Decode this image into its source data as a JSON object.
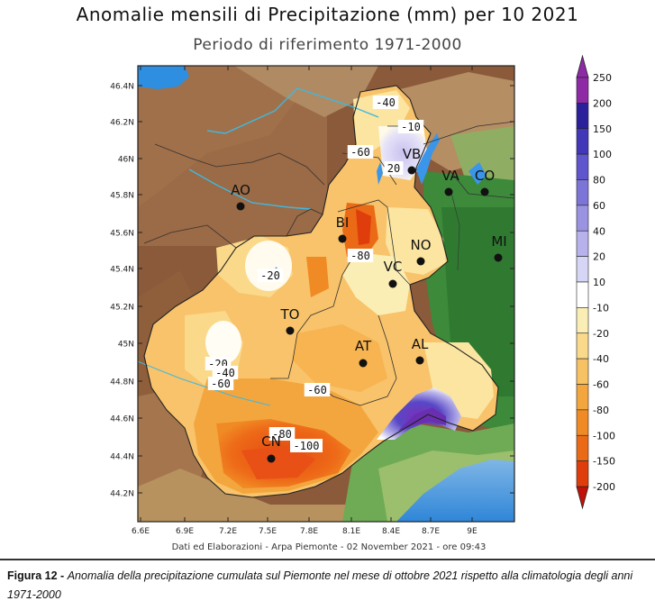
{
  "title": "Anomalie mensili di Precipitazione (mm) per 10 2021",
  "subtitle": "Periodo di riferimento 1971-2000",
  "lat_ticks": [
    "46.4N",
    "46.2N",
    "46N",
    "45.8N",
    "45.6N",
    "45.4N",
    "45.2N",
    "45N",
    "44.8N",
    "44.6N",
    "44.4N",
    "44.2N"
  ],
  "lon_ticks": [
    "6.6E",
    "6.9E",
    "7.2E",
    "7.5E",
    "7.8E",
    "8.1E",
    "8.4E",
    "8.7E",
    "9E"
  ],
  "legend": {
    "levels": [
      "250",
      "200",
      "150",
      "100",
      "80",
      "60",
      "40",
      "20",
      "10",
      "-10",
      "-20",
      "-40",
      "-60",
      "-80",
      "-100",
      "-150",
      "-200"
    ],
    "colors": [
      "#8e2aa6",
      "#2c1f9c",
      "#4237b8",
      "#5f55cc",
      "#7d74d8",
      "#9a93e2",
      "#b7b2ec",
      "#d7d5f6",
      "#ffffff",
      "#fbeeb4",
      "#fad98a",
      "#f7c263",
      "#f4a63e",
      "#f08a24",
      "#ea6a16",
      "#df3d0c"
    ]
  },
  "cities": [
    {
      "name": "VB"
    },
    {
      "name": "VA"
    },
    {
      "name": "CO"
    },
    {
      "name": "AO"
    },
    {
      "name": "BI"
    },
    {
      "name": "NO"
    },
    {
      "name": "MI"
    },
    {
      "name": "VC"
    },
    {
      "name": "TO"
    },
    {
      "name": "AT"
    },
    {
      "name": "AL"
    },
    {
      "name": "CN"
    }
  ],
  "contour_labels": [
    "-40",
    "-10",
    "-60",
    "20",
    "-80",
    "-20",
    "-20",
    "-40",
    "-60",
    "-60",
    "-80",
    "-100"
  ],
  "footer": "Dati ed Elaborazioni - Arpa Piemonte - 02 November 2021 - ore 09:43",
  "caption": {
    "figure": "Figura 12 -",
    "text": "Anomalia della precipitazione cumulata sul Piemonte nel mese di ottobre 2021 rispetto alla climatologia degli anni 1971-2000"
  }
}
